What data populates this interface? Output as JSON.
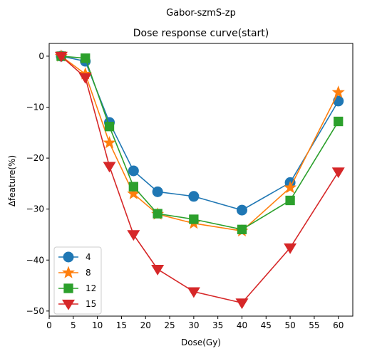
{
  "figure": {
    "suptitle": "Gabor-szmS-zp"
  },
  "chart_data": {
    "type": "line",
    "title": "Dose response curve(start)",
    "xlabel": "Dose(Gy)",
    "ylabel": "Δfeature(%)",
    "xlim": [
      0,
      63
    ],
    "ylim": [
      -51,
      2.5
    ],
    "xticks": [
      0,
      5,
      10,
      15,
      20,
      25,
      30,
      35,
      40,
      45,
      50,
      55,
      60
    ],
    "yticks": [
      0,
      -10,
      -20,
      -30,
      -40,
      -50
    ],
    "grid": false,
    "legend_position": "lower-left",
    "x": [
      2.5,
      7.5,
      12.5,
      17.5,
      22.5,
      30,
      40,
      50,
      60
    ],
    "series": [
      {
        "name": "4",
        "marker": "circle",
        "color": "#1f77b4",
        "values": [
          0,
          -1.0,
          -13.0,
          -22.5,
          -26.6,
          -27.5,
          -30.2,
          -24.8,
          -8.8
        ]
      },
      {
        "name": "8",
        "marker": "star",
        "color": "#ff7f0e",
        "values": [
          0,
          -3.5,
          -17.0,
          -27.0,
          -31.0,
          -32.8,
          -34.3,
          -25.8,
          -7.1
        ]
      },
      {
        "name": "12",
        "marker": "square",
        "color": "#2ca02c",
        "values": [
          0,
          -0.4,
          -13.8,
          -25.6,
          -30.9,
          -32.0,
          -34.0,
          -28.3,
          -12.8
        ]
      },
      {
        "name": "15",
        "marker": "triangle-down",
        "color": "#d62728",
        "values": [
          0,
          -4.2,
          -21.6,
          -35.0,
          -41.8,
          -46.2,
          -48.4,
          -37.6,
          -22.7
        ]
      }
    ]
  }
}
